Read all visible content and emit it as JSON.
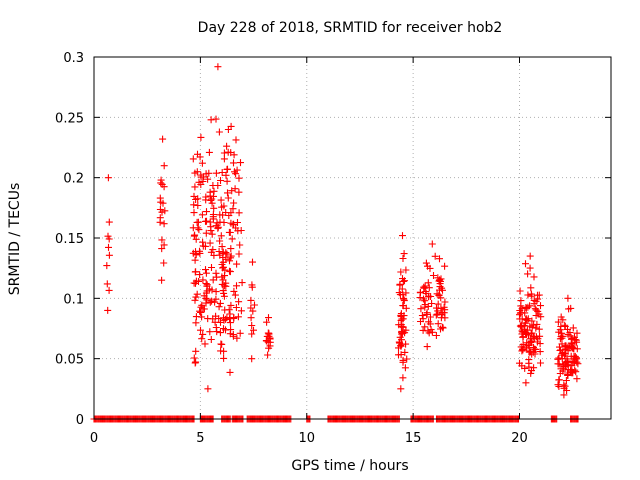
{
  "chart_data": {
    "type": "scatter",
    "title": "Day 228 of 2018, SRMTID for receiver hob2",
    "xlabel": "GPS time / hours",
    "ylabel": "SRMTID / TECUs",
    "xlim": [
      0,
      24.3
    ],
    "ylim": [
      0,
      0.3
    ],
    "xticks": [
      0,
      5,
      10,
      15,
      20
    ],
    "yticks": [
      0,
      0.05,
      0.1,
      0.15,
      0.2,
      0.25,
      0.3
    ],
    "xtick_labels": [
      "0",
      "5",
      "10",
      "15",
      "20"
    ],
    "ytick_labels": [
      "0",
      "0.05",
      "0.1",
      "0.15",
      "0.2",
      "0.25",
      "0.3"
    ],
    "grid": true,
    "marker": "+",
    "color": "#ff0000",
    "series": [
      {
        "name": "SRMTID",
        "clusters": [
          {
            "x_start": 0.6,
            "x_end": 0.75,
            "y_min": 0.09,
            "y_max": 0.2,
            "count": 8
          },
          {
            "x_start": 3.1,
            "x_end": 3.35,
            "y_min": 0.115,
            "y_max": 0.232,
            "count": 18
          },
          {
            "x_start": 4.65,
            "x_end": 7.0,
            "y_min": 0.025,
            "y_max": 0.292,
            "count": 260
          },
          {
            "x_start": 7.35,
            "x_end": 7.55,
            "y_min": 0.05,
            "y_max": 0.13,
            "count": 10
          },
          {
            "x_start": 8.1,
            "x_end": 8.3,
            "y_min": 0.053,
            "y_max": 0.084,
            "count": 14
          },
          {
            "x_start": 14.3,
            "x_end": 14.7,
            "y_min": 0.025,
            "y_max": 0.152,
            "count": 55
          },
          {
            "x_start": 15.3,
            "x_end": 16.5,
            "y_min": 0.06,
            "y_max": 0.145,
            "count": 75
          },
          {
            "x_start": 20.0,
            "x_end": 21.0,
            "y_min": 0.03,
            "y_max": 0.135,
            "count": 110
          },
          {
            "x_start": 21.8,
            "x_end": 22.75,
            "y_min": 0.02,
            "y_max": 0.1,
            "count": 110
          }
        ],
        "zero_segments": [
          [
            0.0,
            4.7
          ],
          [
            5.0,
            5.6
          ],
          [
            6.0,
            6.4
          ],
          [
            6.5,
            7.0
          ],
          [
            7.2,
            7.8
          ],
          [
            7.85,
            9.3
          ],
          [
            10.0,
            10.2
          ],
          [
            11.0,
            14.4
          ],
          [
            14.9,
            16.0
          ],
          [
            16.1,
            20.0
          ],
          [
            21.5,
            21.8
          ],
          [
            22.4,
            22.8
          ]
        ]
      }
    ]
  }
}
